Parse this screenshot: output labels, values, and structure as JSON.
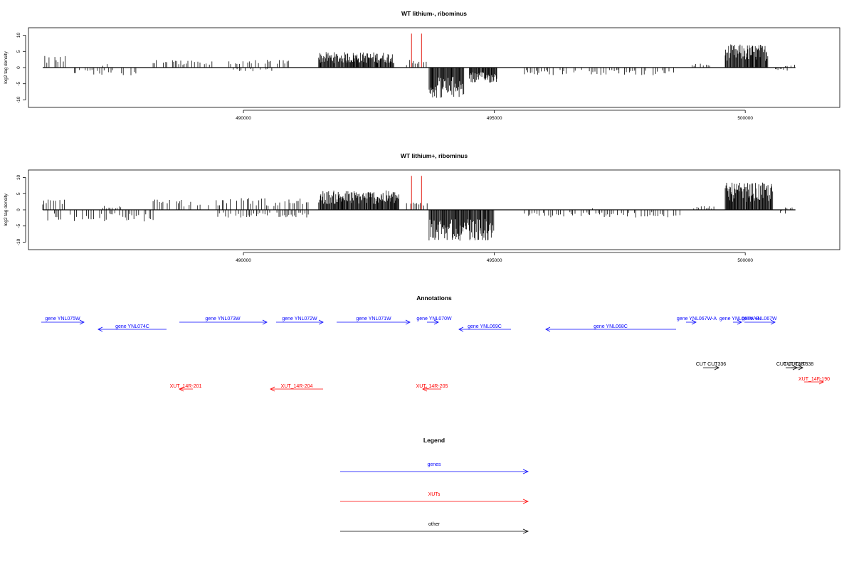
{
  "chart_data": [
    {
      "type": "bar",
      "title": "WT lithium-, ribominus",
      "ylabel": "log2 tag density",
      "xlabel": "",
      "xlim": [
        486000,
        501600
      ],
      "ylim": [
        -11,
        11
      ],
      "yticks": [
        -10,
        -5,
        0,
        5,
        10
      ],
      "xticks": [
        490000,
        495000,
        500000
      ],
      "bar_color": "#000000",
      "marker_color": "#e8453c",
      "markers_x": [
        493350,
        493550
      ],
      "plus_strand_segments": [
        {
          "x": [
            486000,
            486450
          ],
          "y": 3
        },
        {
          "x": [
            487200,
            487350
          ],
          "y": 1
        },
        {
          "x": [
            488200,
            489500
          ],
          "y": 2
        },
        {
          "x": [
            489600,
            491000
          ],
          "y": 2
        },
        {
          "x": [
            491500,
            493000
          ],
          "y": 4
        },
        {
          "x": [
            493250,
            493700
          ],
          "y": 2
        },
        {
          "x": [
            498900,
            499300
          ],
          "y": 1
        },
        {
          "x": [
            499600,
            500450
          ],
          "y": 6
        },
        {
          "x": [
            500800,
            501000
          ],
          "y": 1
        }
      ],
      "minus_strand_segments": [
        {
          "x": [
            486600,
            487900
          ],
          "y": -2
        },
        {
          "x": [
            489800,
            490600
          ],
          "y": -1
        },
        {
          "x": [
            493700,
            494400
          ],
          "y": -8
        },
        {
          "x": [
            494500,
            495050
          ],
          "y": -4
        },
        {
          "x": [
            495600,
            498600
          ],
          "y": -2
        },
        {
          "x": [
            500600,
            500900
          ],
          "y": -1
        }
      ]
    },
    {
      "type": "bar",
      "title": "WT lithium+, ribominus",
      "ylabel": "log2 tag density",
      "xlabel": "",
      "xlim": [
        486000,
        501600
      ],
      "ylim": [
        -11,
        11
      ],
      "yticks": [
        -10,
        -5,
        0,
        5,
        10
      ],
      "xticks": [
        490000,
        495000,
        500000
      ],
      "bar_color": "#000000",
      "marker_color": "#e8453c",
      "markers_x": [
        493350,
        493550
      ],
      "plus_strand_segments": [
        {
          "x": [
            486000,
            486450
          ],
          "y": 3
        },
        {
          "x": [
            487200,
            487600
          ],
          "y": 1
        },
        {
          "x": [
            488200,
            491300
          ],
          "y": 3
        },
        {
          "x": [
            491500,
            493100
          ],
          "y": 5
        },
        {
          "x": [
            493250,
            493700
          ],
          "y": 2
        },
        {
          "x": [
            496800,
            497000
          ],
          "y": 1
        },
        {
          "x": [
            498900,
            499400
          ],
          "y": 1
        },
        {
          "x": [
            499600,
            500550
          ],
          "y": 7
        },
        {
          "x": [
            500800,
            501000
          ],
          "y": 1
        }
      ],
      "minus_strand_segments": [
        {
          "x": [
            486100,
            488200
          ],
          "y": -3
        },
        {
          "x": [
            489400,
            491300
          ],
          "y": -2
        },
        {
          "x": [
            493700,
            495000
          ],
          "y": -8
        },
        {
          "x": [
            495600,
            498700
          ],
          "y": -2
        },
        {
          "x": [
            500700,
            500900
          ],
          "y": -1
        }
      ]
    }
  ],
  "annotations": {
    "title": "Annotations",
    "genes": [
      {
        "label": "gene YNL075W",
        "direction": "right"
      },
      {
        "label": "gene YNL074C",
        "direction": "left"
      },
      {
        "label": "gene YNL073W",
        "direction": "right"
      },
      {
        "label": "gene YNL072W",
        "direction": "right"
      },
      {
        "label": "gene YNL071W",
        "direction": "right"
      },
      {
        "label": "gene YNL070W",
        "direction": "right"
      },
      {
        "label": "gene YNL069C",
        "direction": "left"
      },
      {
        "label": "gene YNL068C",
        "direction": "left"
      },
      {
        "label": "gene YNL067W-A",
        "direction": "right"
      },
      {
        "label": "gene YNL067W-B",
        "direction": "right"
      },
      {
        "label": "gene YNL067W",
        "direction": "right"
      }
    ],
    "others": [
      {
        "label": "CUT CUT336",
        "direction": "right"
      },
      {
        "label": "CUT CUT337",
        "direction": "right"
      },
      {
        "label": "CUT CUT338",
        "direction": "right"
      }
    ],
    "xuts": [
      {
        "label": "XUT_14R-201",
        "direction": "left"
      },
      {
        "label": "XUT_14R-204",
        "direction": "left"
      },
      {
        "label": "XUT_14R-205",
        "direction": "left"
      },
      {
        "label": "XUT_14F-190",
        "direction": "right"
      }
    ]
  },
  "legend": {
    "title": "Legend",
    "items": [
      {
        "label": "genes",
        "color": "#0000ff"
      },
      {
        "label": "XUTs",
        "color": "#ff0000"
      },
      {
        "label": "other",
        "color": "#000000"
      }
    ]
  },
  "colors": {
    "gene": "#0000ff",
    "xut": "#ff0000",
    "other": "#000000"
  }
}
